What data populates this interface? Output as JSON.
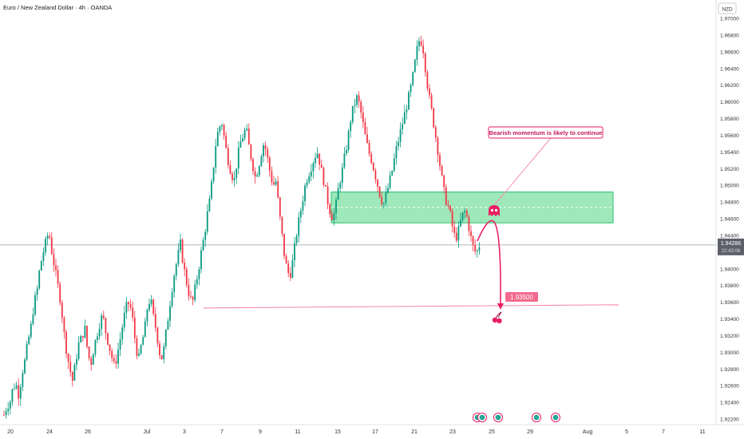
{
  "header": {
    "symbol_title": "Euro / New Zealand Dollar · 4h · OANDA",
    "currency_button": "NZD"
  },
  "colors": {
    "up": "#089981",
    "down": "#f23645",
    "up_light": "#26a69a",
    "zone_fill": "#7ee0a2",
    "zone_border": "#2fbf71",
    "annotation": "#e91e63",
    "badge_fill": "#f36a8d",
    "price_label_bg": "#5d606b"
  },
  "chart_data": {
    "type": "candlestick",
    "title": "Euro / New Zealand Dollar · 4h · OANDA",
    "y_axis": {
      "labels": [
        "1.97000",
        "1.96800",
        "1.96600",
        "1.96400",
        "1.96200",
        "1.96000",
        "1.95800",
        "1.95600",
        "1.95400",
        "1.95200",
        "1.95000",
        "1.94800",
        "1.94600",
        "1.94400",
        "1.94200",
        "1.94000",
        "1.93800",
        "1.93600",
        "1.93400",
        "1.93200",
        "1.93000",
        "1.92800",
        "1.92600",
        "1.92400",
        "1.92200"
      ],
      "range": [
        1.9214,
        1.9712
      ]
    },
    "x_axis": {
      "labels": [
        "20",
        "24",
        "26",
        "Jul",
        "3",
        "7",
        "9",
        "11",
        "15",
        "17",
        "21",
        "23",
        "25",
        "29",
        "Aug",
        "5",
        "7",
        "11"
      ]
    },
    "current_price": {
      "label": "1.94286",
      "sub_label": "22:43:06",
      "value": 1.94286
    },
    "waypoints": [
      [
        1.9225,
        1.9236
      ],
      [
        1.924,
        1.9258
      ],
      [
        1.9262,
        1.9248
      ],
      [
        1.9275,
        1.929
      ],
      [
        1.9312,
        1.933
      ],
      [
        1.9358,
        1.9372
      ],
      [
        1.9402,
        1.9418
      ],
      [
        1.9432,
        1.9445
      ],
      [
        1.942,
        1.94
      ],
      [
        1.938,
        1.936
      ],
      [
        1.9325,
        1.93
      ],
      [
        1.928,
        1.9265
      ],
      [
        1.929,
        1.931
      ],
      [
        1.9318,
        1.933
      ],
      [
        1.93,
        1.9285
      ],
      [
        1.9305,
        1.932
      ],
      [
        1.9335,
        1.9345
      ],
      [
        1.9325,
        1.931
      ],
      [
        1.9295,
        1.9282
      ],
      [
        1.93,
        1.9318
      ],
      [
        1.934,
        1.9355
      ],
      [
        1.936,
        1.934
      ],
      [
        1.931,
        1.929
      ],
      [
        1.931,
        1.9325
      ],
      [
        1.9355,
        1.9365
      ],
      [
        1.9342,
        1.9325
      ],
      [
        1.93,
        1.9292
      ],
      [
        1.9318,
        1.9345
      ],
      [
        1.9372,
        1.9395
      ],
      [
        1.9412,
        1.943
      ],
      [
        1.9405,
        1.9385
      ],
      [
        1.9368,
        1.9358
      ],
      [
        1.9378,
        1.9398
      ],
      [
        1.942,
        1.944
      ],
      [
        1.9465,
        1.9485
      ],
      [
        1.952,
        1.9555
      ],
      [
        1.957,
        1.9575
      ],
      [
        1.9548,
        1.953
      ],
      [
        1.9515,
        1.9505
      ],
      [
        1.953,
        1.955
      ],
      [
        1.956,
        1.9568
      ],
      [
        1.9545,
        1.9528
      ],
      [
        1.951,
        1.952
      ],
      [
        1.9538,
        1.9552
      ],
      [
        1.9535,
        1.9515
      ],
      [
        1.95,
        1.9505
      ],
      [
        1.947,
        1.944
      ],
      [
        1.941,
        1.9395
      ],
      [
        1.9395,
        1.942
      ],
      [
        1.9445,
        1.9465
      ],
      [
        1.9485,
        1.9505
      ],
      [
        1.9515,
        1.9525
      ],
      [
        1.9535,
        1.954
      ],
      [
        1.952,
        1.9505
      ],
      [
        1.9485,
        1.947
      ],
      [
        1.946,
        1.9475
      ],
      [
        1.95,
        1.9515
      ],
      [
        1.9535,
        1.9555
      ],
      [
        1.958,
        1.9595
      ],
      [
        1.9605,
        1.9595
      ],
      [
        1.9575,
        1.9555
      ],
      [
        1.954,
        1.953
      ],
      [
        1.9515,
        1.95
      ],
      [
        1.9485,
        1.9478
      ],
      [
        1.949,
        1.9505
      ],
      [
        1.952,
        1.954
      ],
      [
        1.9555,
        1.957
      ],
      [
        1.9585,
        1.96
      ],
      [
        1.9615,
        1.9635
      ],
      [
        1.966,
        1.9675
      ],
      [
        1.967,
        1.964
      ],
      [
        1.961,
        1.959
      ],
      [
        1.9568,
        1.9545
      ],
      [
        1.952,
        1.9495
      ],
      [
        1.948,
        1.947
      ],
      [
        1.945,
        1.9435
      ],
      [
        1.9445,
        1.946
      ],
      [
        1.947,
        1.946
      ],
      [
        1.944,
        1.9425
      ],
      [
        1.9418,
        1.9428
      ]
    ],
    "demand_zone": {
      "top": 1.9492,
      "bottom": 1.9455,
      "midline": 1.94735
    },
    "support_line": {
      "value": 1.9355
    },
    "target_label": {
      "text": "1.93500",
      "value": 1.935
    },
    "annotation": {
      "text": "Bearish momentum is likely to continue"
    },
    "event_markers_count": 5
  }
}
